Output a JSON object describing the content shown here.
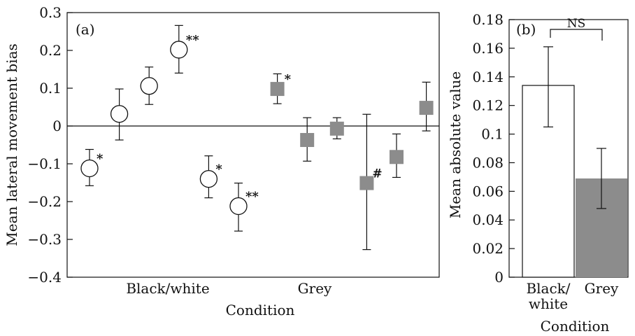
{
  "chart_data": [
    {
      "panel": "(a)",
      "type": "scatter",
      "xlabel": "Condition",
      "ylabel": "Mean lateral movement bias",
      "ylim": [
        -0.4,
        0.3
      ],
      "yticks": [
        "0.3",
        "0.2",
        "0.1",
        "0",
        "−0.1",
        "−0.2",
        "−0.3",
        "−0.4"
      ],
      "ytick_values": [
        0.3,
        0.2,
        0.1,
        0,
        -0.1,
        -0.2,
        -0.3,
        -0.4
      ],
      "zero_line": true,
      "categories": [
        "Black/white",
        "Grey"
      ],
      "series": [
        {
          "group": "Black/white",
          "marker": "open-circle",
          "color": "#ffffff",
          "points": [
            {
              "y": -0.112,
              "lo": -0.158,
              "hi": -0.062,
              "mark": "*"
            },
            {
              "y": 0.032,
              "lo": -0.037,
              "hi": 0.098,
              "mark": ""
            },
            {
              "y": 0.106,
              "lo": 0.057,
              "hi": 0.156,
              "mark": ""
            },
            {
              "y": 0.202,
              "lo": 0.14,
              "hi": 0.266,
              "mark": "**"
            },
            {
              "y": -0.14,
              "lo": -0.19,
              "hi": -0.079,
              "mark": "*"
            },
            {
              "y": -0.212,
              "lo": -0.278,
              "hi": -0.151,
              "mark": "**"
            }
          ]
        },
        {
          "group": "Grey",
          "marker": "filled-square",
          "color": "#8c8c8c",
          "points": [
            {
              "y": 0.098,
              "lo": 0.059,
              "hi": 0.138,
              "mark": "*"
            },
            {
              "y": -0.037,
              "lo": -0.093,
              "hi": 0.022,
              "mark": ""
            },
            {
              "y": -0.007,
              "lo": -0.034,
              "hi": 0.022,
              "mark": ""
            },
            {
              "y": -0.151,
              "lo": -0.327,
              "hi": 0.031,
              "mark": "#"
            },
            {
              "y": -0.082,
              "lo": -0.136,
              "hi": -0.021,
              "mark": ""
            },
            {
              "y": 0.048,
              "lo": -0.013,
              "hi": 0.116,
              "mark": ""
            }
          ]
        }
      ]
    },
    {
      "panel": "(b)",
      "type": "bar",
      "xlabel": "Condition",
      "ylabel": "Mean absolute value",
      "ylim": [
        0,
        0.18
      ],
      "yticks": [
        "0",
        "0.02",
        "0.04",
        "0.06",
        "0.08",
        "0.1",
        "0.12",
        "0.14",
        "0.16",
        "0.18"
      ],
      "ytick_values": [
        0,
        0.02,
        0.04,
        0.06,
        0.08,
        0.1,
        0.12,
        0.14,
        0.16,
        0.18
      ],
      "categories": [
        {
          "lines": [
            "Black/",
            "white"
          ]
        },
        {
          "lines": [
            "Grey"
          ]
        }
      ],
      "values": [
        0.134,
        0.069
      ],
      "errors": [
        {
          "lo": 0.105,
          "hi": 0.161
        },
        {
          "lo": 0.048,
          "hi": 0.09
        }
      ],
      "bar_colors": [
        "#ffffff",
        "#8c8c8c"
      ],
      "significance": "NS"
    }
  ]
}
